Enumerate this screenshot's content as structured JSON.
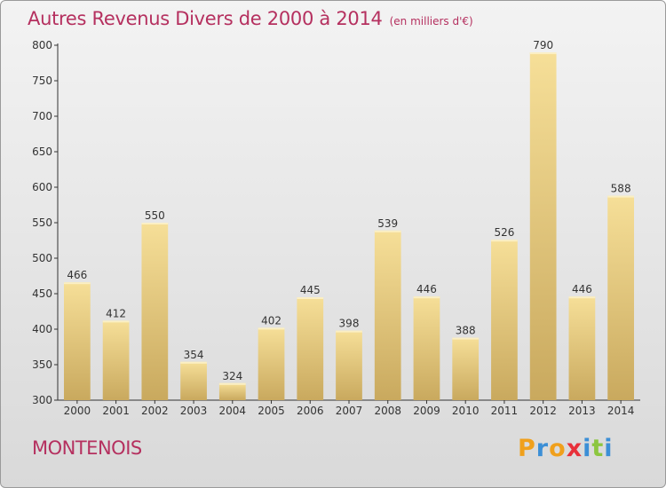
{
  "title": "Autres Revenus Divers de 2000 à 2014",
  "subtitle": "(en milliers d'€)",
  "commune": "MONTENOIS",
  "logo": {
    "letters": [
      "P",
      "r",
      "o",
      "x",
      "i",
      "t",
      "i"
    ],
    "colors": [
      "#f0a01c",
      "#3c8fd6",
      "#f0a01c",
      "#e8303a",
      "#3c8fd6",
      "#8cc63f",
      "#3c8fd6"
    ]
  },
  "chart_data": {
    "type": "bar",
    "title": "Autres Revenus Divers de 2000 à 2014",
    "subtitle": "(en milliers d'€)",
    "xlabel": "",
    "ylabel": "",
    "ylim": [
      300,
      800
    ],
    "yticks": [
      300,
      350,
      400,
      450,
      500,
      550,
      600,
      650,
      700,
      750,
      800
    ],
    "grid": false,
    "categories": [
      "2000",
      "2001",
      "2002",
      "2003",
      "2004",
      "2005",
      "2006",
      "2007",
      "2008",
      "2009",
      "2010",
      "2011",
      "2012",
      "2013",
      "2014"
    ],
    "values": [
      466,
      412,
      550,
      354,
      324,
      402,
      445,
      398,
      539,
      446,
      388,
      526,
      790,
      446,
      588
    ],
    "bar_color": "#e9cd84"
  }
}
